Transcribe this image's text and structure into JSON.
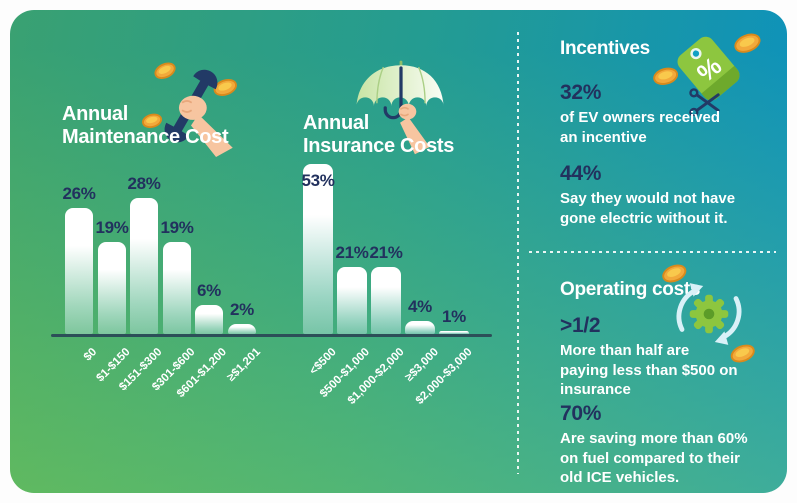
{
  "palette": {
    "navy_text": "#22315E",
    "white_text": "#FFFFFF",
    "tag_green": "#8DC63F",
    "coin_gold": "#F2A93B",
    "axis_line": "#2C4F58",
    "bg_green_left": "#43B06A",
    "bg_blue_right": "#0D9DC6",
    "bg_green_bottom_left": "#6FC04C",
    "bg_teal_bottom_right": "#21A89E"
  },
  "chart_data": [
    {
      "type": "bar",
      "title": "Annual Maintenance Cost",
      "title_lines": [
        "Annual",
        "Maintenance Cost"
      ],
      "icon": "wrench-hand-icon",
      "categories": [
        "$0",
        "$1-$150",
        "$151-$300",
        "$301-$600",
        "$601-$1,200",
        "≥$1,201"
      ],
      "values": [
        26,
        19,
        28,
        19,
        6,
        2
      ],
      "value_labels": [
        "26%",
        "19%",
        "28%",
        "19%",
        "6%",
        "2%"
      ],
      "unit": "%",
      "legend": "none",
      "grid": "off"
    },
    {
      "type": "bar",
      "title": "Annual Insurance Costs",
      "title_lines": [
        "Annual",
        "Insurance Costs"
      ],
      "icon": "umbrella-hand-icon",
      "categories": [
        "<$500",
        "$500-$1,000",
        "$1,000-$2,000",
        "≥$3,000",
        "$2,000-$3,000"
      ],
      "values": [
        53,
        21,
        21,
        4,
        1
      ],
      "value_labels": [
        "53%",
        "21%",
        "21%",
        "4%",
        "1%"
      ],
      "unit": "%",
      "legend": "none",
      "grid": "off"
    }
  ],
  "sidebar": {
    "sections": [
      {
        "title": "Incentives",
        "icon": "price-tag-icon",
        "stats": [
          {
            "value": "32%",
            "text": "of EV owners received\nan incentive"
          },
          {
            "value": "44%",
            "text": "Say they would not have\ngone electric without it."
          }
        ]
      },
      {
        "title": "Operating costs",
        "icon": "gear-cycle-icon",
        "stats": [
          {
            "value": ">1/2",
            "text": "More than half are\npaying less than $500 on\ninsurance"
          },
          {
            "value": "70%",
            "text": "Are saving more than 60%\non fuel compared to their\nold ICE vehicles."
          }
        ]
      }
    ]
  }
}
